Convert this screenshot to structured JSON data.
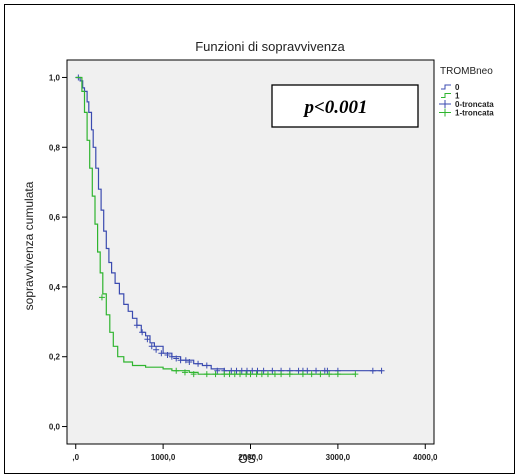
{
  "chart_data": {
    "type": "line",
    "title": "Funzioni di sopravvivenza",
    "xlabel": "OS",
    "ylabel": "sopravvivenza cumulata",
    "xlim": [
      -100,
      4100
    ],
    "ylim": [
      -0.05,
      1.05
    ],
    "x_ticks": [
      0,
      1000,
      2000,
      3000,
      4000
    ],
    "x_tick_labels": [
      ",0",
      "1000,0",
      "2000,0",
      "3000,0",
      "4000,0"
    ],
    "y_ticks": [
      0,
      0.2,
      0.4,
      0.6,
      0.8,
      1.0
    ],
    "y_tick_labels": [
      "0,0",
      "0,2",
      "0,4",
      "0,6",
      "0,8",
      "1,0"
    ],
    "grid": false,
    "legend_title": "TROMBneo",
    "legend_position": "right",
    "legend": [
      {
        "label": "0",
        "kind": "line",
        "color": "#3b4bb0"
      },
      {
        "label": "1",
        "kind": "line",
        "color": "#2fb52f"
      },
      {
        "label": "0-troncata",
        "kind": "cross",
        "color": "#3b4bb0"
      },
      {
        "label": "1-troncata",
        "kind": "cross",
        "color": "#2fb52f"
      }
    ],
    "annotation": "p<0.001",
    "series": [
      {
        "name": "0",
        "color": "#3b4bb0",
        "steps": [
          [
            0,
            1.0
          ],
          [
            50,
            0.99
          ],
          [
            80,
            0.97
          ],
          [
            100,
            0.96
          ],
          [
            130,
            0.93
          ],
          [
            150,
            0.9
          ],
          [
            180,
            0.85
          ],
          [
            200,
            0.8
          ],
          [
            230,
            0.74
          ],
          [
            260,
            0.68
          ],
          [
            290,
            0.62
          ],
          [
            320,
            0.56
          ],
          [
            350,
            0.51
          ],
          [
            380,
            0.47
          ],
          [
            410,
            0.44
          ],
          [
            450,
            0.41
          ],
          [
            500,
            0.38
          ],
          [
            550,
            0.35
          ],
          [
            600,
            0.33
          ],
          [
            650,
            0.31
          ],
          [
            700,
            0.29
          ],
          [
            750,
            0.27
          ],
          [
            800,
            0.26
          ],
          [
            850,
            0.24
          ],
          [
            900,
            0.23
          ],
          [
            1000,
            0.21
          ],
          [
            1100,
            0.2
          ],
          [
            1200,
            0.19
          ],
          [
            1350,
            0.18
          ],
          [
            1450,
            0.175
          ],
          [
            1550,
            0.165
          ],
          [
            1700,
            0.16
          ],
          [
            3500,
            0.16
          ]
        ],
        "censored": [
          [
            30,
            1.0
          ],
          [
            700,
            0.29
          ],
          [
            760,
            0.27
          ],
          [
            820,
            0.25
          ],
          [
            870,
            0.23
          ],
          [
            920,
            0.22
          ],
          [
            980,
            0.21
          ],
          [
            1050,
            0.205
          ],
          [
            1100,
            0.2
          ],
          [
            1150,
            0.195
          ],
          [
            1200,
            0.19
          ],
          [
            1260,
            0.19
          ],
          [
            1300,
            0.185
          ],
          [
            1400,
            0.18
          ],
          [
            1500,
            0.175
          ],
          [
            1620,
            0.16
          ],
          [
            1700,
            0.16
          ],
          [
            1780,
            0.16
          ],
          [
            1840,
            0.16
          ],
          [
            1900,
            0.16
          ],
          [
            1960,
            0.16
          ],
          [
            2020,
            0.16
          ],
          [
            2080,
            0.16
          ],
          [
            2150,
            0.16
          ],
          [
            2250,
            0.16
          ],
          [
            2350,
            0.16
          ],
          [
            2450,
            0.16
          ],
          [
            2550,
            0.16
          ],
          [
            2600,
            0.16
          ],
          [
            2650,
            0.16
          ],
          [
            2750,
            0.16
          ],
          [
            2850,
            0.16
          ],
          [
            2880,
            0.16
          ],
          [
            3000,
            0.16
          ],
          [
            3400,
            0.16
          ],
          [
            3500,
            0.16
          ]
        ]
      },
      {
        "name": "1",
        "color": "#2fb52f",
        "steps": [
          [
            0,
            1.0
          ],
          [
            70,
            0.96
          ],
          [
            100,
            0.9
          ],
          [
            130,
            0.82
          ],
          [
            160,
            0.74
          ],
          [
            190,
            0.66
          ],
          [
            220,
            0.58
          ],
          [
            250,
            0.5
          ],
          [
            280,
            0.44
          ],
          [
            310,
            0.38
          ],
          [
            350,
            0.32
          ],
          [
            390,
            0.27
          ],
          [
            430,
            0.23
          ],
          [
            480,
            0.2
          ],
          [
            550,
            0.185
          ],
          [
            650,
            0.175
          ],
          [
            800,
            0.17
          ],
          [
            1000,
            0.165
          ],
          [
            1100,
            0.16
          ],
          [
            1300,
            0.155
          ],
          [
            1400,
            0.15
          ],
          [
            3200,
            0.15
          ]
        ],
        "censored": [
          [
            300,
            0.37
          ],
          [
            1150,
            0.16
          ],
          [
            1250,
            0.155
          ],
          [
            1350,
            0.15
          ],
          [
            1500,
            0.15
          ],
          [
            1600,
            0.15
          ],
          [
            1700,
            0.15
          ],
          [
            1760,
            0.15
          ],
          [
            1820,
            0.15
          ],
          [
            1880,
            0.15
          ],
          [
            1950,
            0.15
          ],
          [
            2000,
            0.15
          ],
          [
            2070,
            0.15
          ],
          [
            2130,
            0.15
          ],
          [
            2200,
            0.15
          ],
          [
            2280,
            0.15
          ],
          [
            2350,
            0.15
          ],
          [
            2450,
            0.15
          ],
          [
            2600,
            0.15
          ],
          [
            2700,
            0.15
          ],
          [
            2800,
            0.15
          ],
          [
            2900,
            0.15
          ],
          [
            3000,
            0.15
          ],
          [
            3200,
            0.15
          ]
        ]
      }
    ]
  }
}
